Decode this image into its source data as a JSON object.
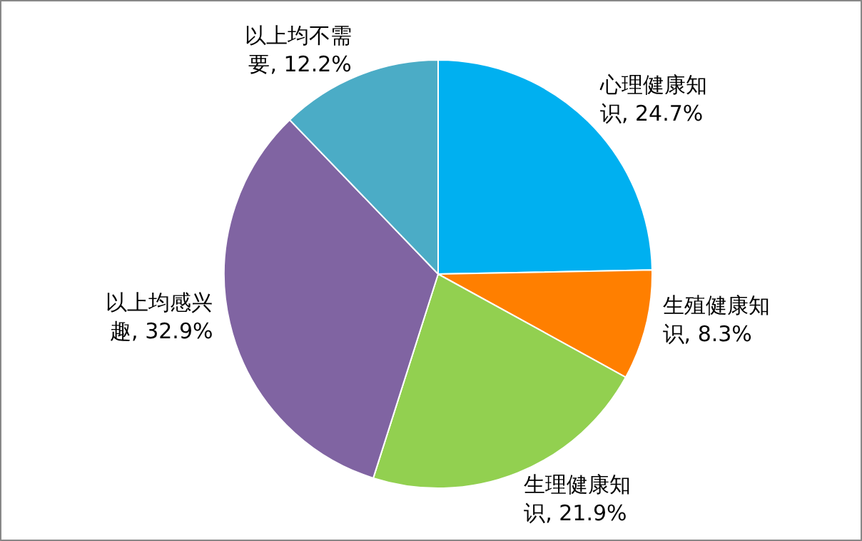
{
  "chart_data": {
    "type": "pie",
    "categories": [
      "心理健康知识",
      "生殖健康知识",
      "生理健康知识",
      "以上均感兴趣",
      "以上均不需要"
    ],
    "values": [
      24.7,
      8.3,
      21.9,
      32.9,
      12.2
    ],
    "value_labels": [
      "24.7%",
      "8.3%",
      "21.9%",
      "32.9%",
      "12.2%"
    ],
    "colors": [
      "#00b0f0",
      "#ff7f00",
      "#92d050",
      "#8064a2",
      "#4bacc6"
    ],
    "legend": false
  }
}
